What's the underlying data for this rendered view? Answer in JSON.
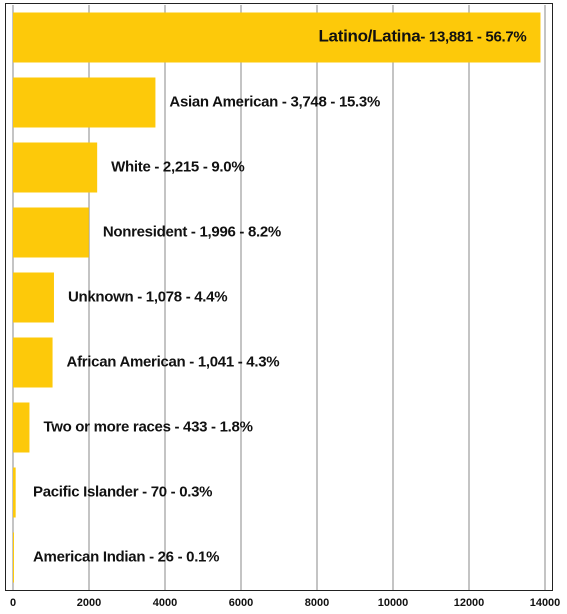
{
  "chart_data": {
    "type": "bar",
    "orientation": "horizontal",
    "categories": [
      "Latino/Latina",
      "Asian American",
      "White",
      "Nonresident",
      "Unknown",
      "African American",
      "Two or more races",
      "Pacific Islander",
      "American Indian"
    ],
    "values": [
      13881,
      3748,
      2215,
      1996,
      1078,
      1041,
      433,
      70,
      26
    ],
    "value_labels": [
      "- 13,881 -  56.7%",
      " - 3,748 - 15.3%",
      " - 2,215 - 9.0%",
      "  - 1,996    - 8.2%",
      " - 1,078 - 4.4%",
      " - 1,041 - 4.3%",
      " - 433 - 1.8%",
      " - 70 - 0.3%",
      " - 26 - 0.1%"
    ],
    "color": "#FDC90A",
    "xlim": [
      0,
      14000
    ],
    "xticks": [
      0,
      2000,
      4000,
      6000,
      8000,
      10000,
      12000,
      14000
    ],
    "grid": true
  }
}
